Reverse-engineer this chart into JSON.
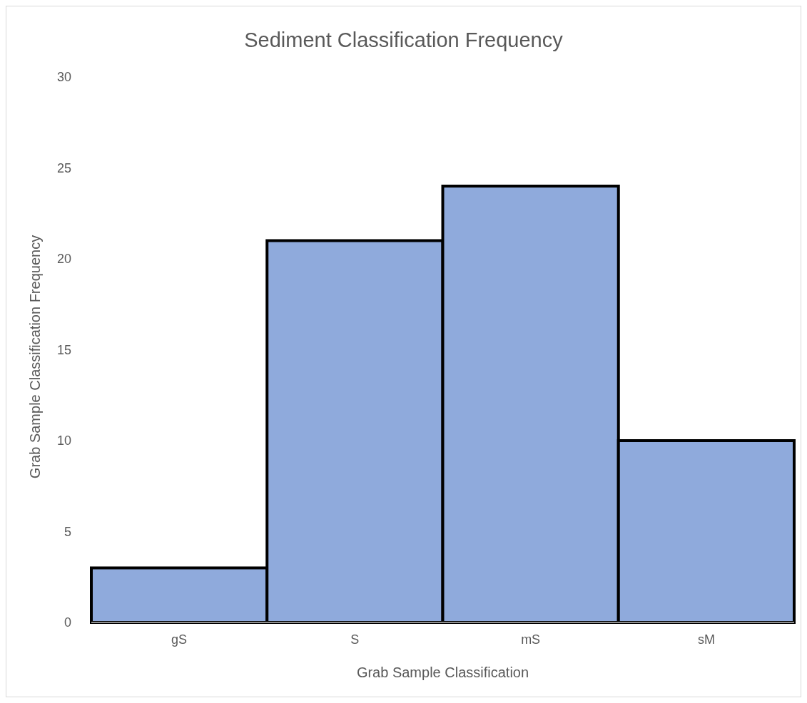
{
  "chart_data": {
    "type": "bar",
    "title": "Sediment Classification Frequency",
    "xlabel": "Grab Sample Classification",
    "ylabel": "Grab Sample Classification Frequency",
    "categories": [
      "gS",
      "S",
      "mS",
      "sM"
    ],
    "values": [
      3,
      21,
      24,
      10
    ],
    "color": "#8faadc",
    "ylim": [
      0,
      30
    ],
    "yticks": [
      0,
      5,
      10,
      15,
      20,
      25,
      30
    ],
    "grid": false
  }
}
